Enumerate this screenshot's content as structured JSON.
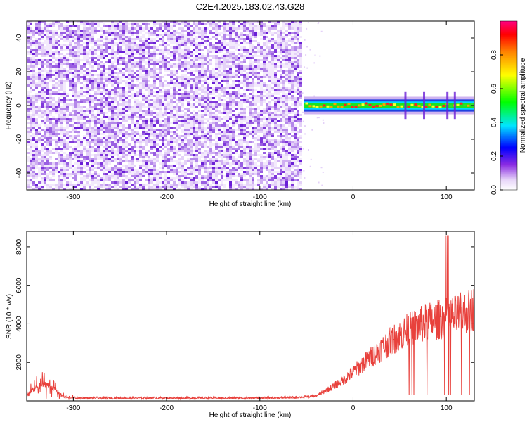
{
  "title": "C2E4.2025.183.02.43.G28",
  "chart_data": [
    {
      "type": "heatmap",
      "xlabel": "Height of straight line (km)",
      "ylabel": "Frequency (Hz)",
      "xlim": [
        -350,
        130
      ],
      "ylim": [
        -50,
        50
      ],
      "xticks": [
        -300,
        -200,
        -100,
        0,
        100
      ],
      "yticks": [
        -40,
        -20,
        0,
        20,
        40
      ],
      "noise_region_x": [
        -350,
        -55
      ],
      "signal_region_x": [
        -55,
        130
      ],
      "signal_center_hz": 0,
      "signal_halfwidth_hz": 2,
      "colorbar": {
        "label": "Normalized spectral amplitude",
        "ticks": [
          0.0,
          0.2,
          0.4,
          0.6,
          0.8
        ],
        "range": [
          0,
          1
        ],
        "colors": [
          "#ffffff",
          "#8a2be2",
          "#0000ff",
          "#00e5ff",
          "#00ff00",
          "#ffff00",
          "#ff8000",
          "#ff0000",
          "#ff0080"
        ]
      }
    },
    {
      "type": "line",
      "xlabel": "Height of straight line (km)",
      "ylabel": "SNR (10 * v/v)",
      "xlim": [
        -350,
        130
      ],
      "ylim": [
        0,
        8800
      ],
      "xticks": [
        -300,
        -200,
        -100,
        0,
        100
      ],
      "yticks": [
        2000,
        4000,
        6000,
        8000
      ],
      "color": "#e8413c",
      "series": [
        {
          "x": [
            -350,
            -340,
            -330,
            -320,
            -310,
            -300,
            -250,
            -200,
            -150,
            -100,
            -60,
            -40,
            -30,
            -20,
            -10,
            0,
            10,
            20,
            30,
            40,
            50,
            60,
            70,
            80,
            90,
            100,
            110,
            120,
            130
          ],
          "values": [
            300,
            700,
            900,
            600,
            200,
            150,
            150,
            150,
            150,
            150,
            180,
            250,
            500,
            800,
            1100,
            1500,
            1900,
            2300,
            2700,
            3100,
            3400,
            3700,
            3900,
            4100,
            4200,
            4300,
            4400,
            4600,
            4800
          ]
        }
      ]
    }
  ]
}
